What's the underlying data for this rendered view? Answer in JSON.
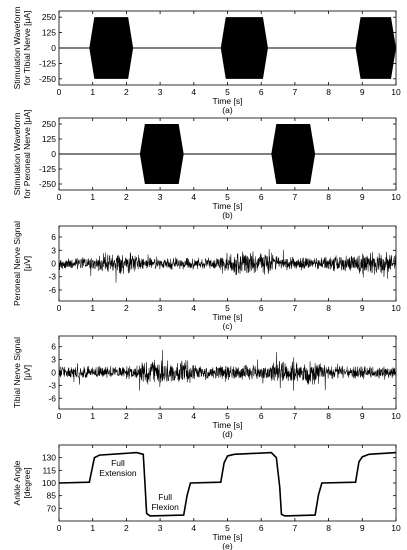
{
  "chart_data": [
    {
      "id": "a",
      "type": "line",
      "signal": "bursts",
      "ylabel": [
        "Stimulation Waveform",
        "for Tibial Nerve [μA]"
      ],
      "xlabel": "Time [s]",
      "caption": "(a)",
      "xlim": [
        0,
        10
      ],
      "ylim": [
        -300,
        300
      ],
      "xticks": [
        "0",
        "1",
        "2",
        "3",
        "4",
        "5",
        "6",
        "7",
        "8",
        "9",
        "10"
      ],
      "yticks": [
        {
          "v": 250,
          "label": "250"
        },
        {
          "v": 125,
          "label": "125"
        },
        {
          "v": 0,
          "label": "0"
        },
        {
          "v": -125,
          "label": "-125"
        },
        {
          "v": -250,
          "label": "-250"
        }
      ],
      "amplitude": 250,
      "bursts": [
        [
          0.9,
          2.2
        ],
        [
          4.8,
          6.2
        ],
        [
          8.8,
          10.0
        ]
      ]
    },
    {
      "id": "b",
      "type": "line",
      "signal": "bursts",
      "ylabel": [
        "Stimulation Waveform",
        "for Peroneal Nerve [μA]"
      ],
      "xlabel": "Time [s]",
      "caption": "(b)",
      "xlim": [
        0,
        10
      ],
      "ylim": [
        -300,
        300
      ],
      "xticks": [
        "0",
        "1",
        "2",
        "3",
        "4",
        "5",
        "6",
        "7",
        "8",
        "9",
        "10"
      ],
      "yticks": [
        {
          "v": 250,
          "label": "250"
        },
        {
          "v": 125,
          "label": "125"
        },
        {
          "v": 0,
          "label": "0"
        },
        {
          "v": -125,
          "label": "-125"
        },
        {
          "v": -250,
          "label": "-250"
        }
      ],
      "amplitude": 250,
      "bursts": [
        [
          2.4,
          3.7
        ],
        [
          6.3,
          7.6
        ]
      ]
    },
    {
      "id": "c",
      "type": "line",
      "signal": "noise",
      "ylabel": [
        "Peroneal Nerve Signal",
        "[μV]"
      ],
      "xlabel": "Time [s]",
      "caption": "(c)",
      "xlim": [
        0,
        10
      ],
      "ylim": [
        -8.5,
        8.5
      ],
      "xticks": [
        "0",
        "1",
        "2",
        "3",
        "4",
        "5",
        "6",
        "7",
        "8",
        "9",
        "10"
      ],
      "yticks": [
        {
          "v": 6,
          "label": "6"
        },
        {
          "v": 3,
          "label": "3"
        },
        {
          "v": 0,
          "label": "0"
        },
        {
          "v": -3,
          "label": "-3"
        },
        {
          "v": -6,
          "label": "-6"
        }
      ],
      "envelope": [
        [
          0,
          1.3
        ],
        [
          1.0,
          1.6
        ],
        [
          1.2,
          2.6
        ],
        [
          2.3,
          2.6
        ],
        [
          2.5,
          1.5
        ],
        [
          4.7,
          1.6
        ],
        [
          5.0,
          3.2
        ],
        [
          6.3,
          3.2
        ],
        [
          6.5,
          1.8
        ],
        [
          8.7,
          2.0
        ],
        [
          9.0,
          3.0
        ],
        [
          10.0,
          2.8
        ]
      ]
    },
    {
      "id": "d",
      "type": "line",
      "signal": "noise",
      "ylabel": [
        "Tibial Nerve Signal",
        "[μV]"
      ],
      "xlabel": "Time [s]",
      "caption": "(d)",
      "xlim": [
        0,
        10
      ],
      "ylim": [
        -8.5,
        8.5
      ],
      "xticks": [
        "0",
        "1",
        "2",
        "3",
        "4",
        "5",
        "6",
        "7",
        "8",
        "9",
        "10"
      ],
      "yticks": [
        {
          "v": 6,
          "label": "6"
        },
        {
          "v": 3,
          "label": "3"
        },
        {
          "v": 0,
          "label": "0"
        },
        {
          "v": -3,
          "label": "-3"
        },
        {
          "v": -6,
          "label": "-6"
        }
      ],
      "envelope": [
        [
          0,
          1.5
        ],
        [
          2.3,
          1.8
        ],
        [
          2.5,
          3.2
        ],
        [
          3.8,
          3.2
        ],
        [
          4.0,
          1.9
        ],
        [
          6.2,
          2.0
        ],
        [
          6.5,
          3.1
        ],
        [
          7.7,
          3.0
        ],
        [
          8.0,
          1.8
        ],
        [
          10.0,
          1.6
        ]
      ]
    },
    {
      "id": "e",
      "type": "line",
      "signal": "steps",
      "ylabel": [
        "Ankle Angle",
        "[degree]"
      ],
      "xlabel": "Time [s]",
      "caption": "(e)",
      "xlim": [
        0,
        10
      ],
      "ylim": [
        55,
        145
      ],
      "xticks": [
        "0",
        "1",
        "2",
        "3",
        "4",
        "5",
        "6",
        "7",
        "8",
        "9",
        "10"
      ],
      "yticks": [
        {
          "v": 130,
          "label": "130"
        },
        {
          "v": 115,
          "label": "115"
        },
        {
          "v": 100,
          "label": "100"
        },
        {
          "v": 85,
          "label": "85"
        },
        {
          "v": 70,
          "label": "70"
        }
      ],
      "series": [
        {
          "x": [
            0,
            0.9,
            1.05,
            1.2,
            2.3,
            2.5,
            2.55,
            2.6,
            2.7,
            3.7,
            3.8,
            3.9,
            4.8,
            4.9,
            5.0,
            5.2,
            6.3,
            6.45,
            6.55,
            6.6,
            6.7,
            7.6,
            7.7,
            7.8,
            8.8,
            8.9,
            9.0,
            9.2,
            10.0
          ],
          "y": [
            100,
            101,
            130,
            133,
            136,
            134,
            100,
            64,
            61,
            62,
            85,
            100,
            101,
            124,
            132,
            134,
            136,
            130,
            95,
            63,
            61,
            62,
            86,
            100,
            101,
            125,
            131,
            134,
            136
          ]
        }
      ],
      "annotations": [
        {
          "lines": [
            "Full",
            "Extension"
          ],
          "x": 1.75,
          "y": 120
        },
        {
          "lines": [
            "Full",
            "Flexion"
          ],
          "x": 3.15,
          "y": 80
        }
      ]
    }
  ]
}
